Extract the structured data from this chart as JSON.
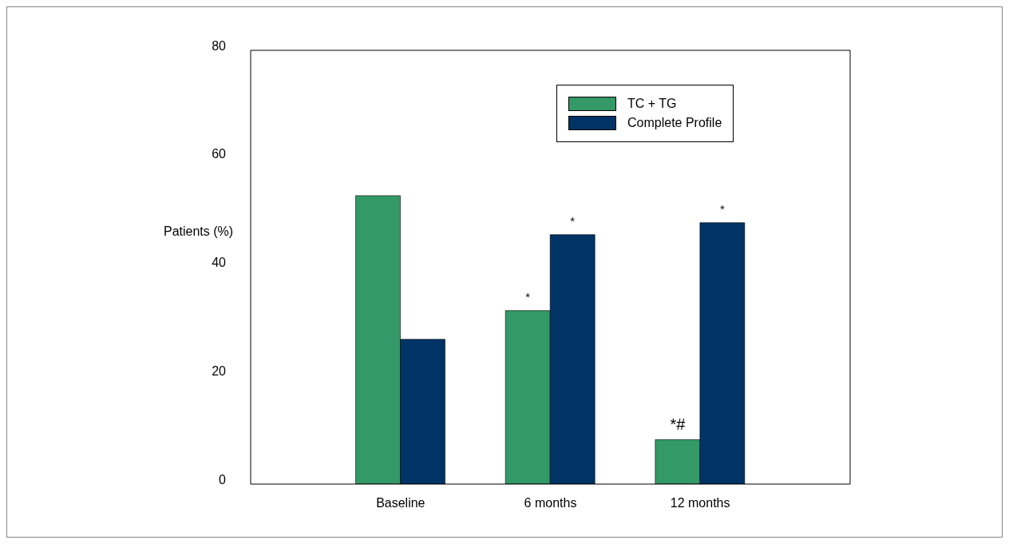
{
  "chart_data": {
    "type": "bar",
    "ylabel": "Patients (%)",
    "categories": [
      "Baseline",
      "6 months",
      "12 months"
    ],
    "series": [
      {
        "name": "TC + TG",
        "color": "#339966",
        "values": [
          53.2,
          32.0,
          8.2
        ]
      },
      {
        "name": "Complete Profile",
        "color": "#003366",
        "values": [
          26.7,
          46.0,
          48.2
        ]
      }
    ],
    "ylim": [
      0,
      80
    ],
    "yticks": [
      0,
      20,
      40,
      60,
      80
    ],
    "grid": false,
    "legend": "top right",
    "annotations": [
      {
        "text": "*",
        "x": "6 months",
        "y": 32.0
      },
      {
        "text": "*",
        "x": "6 months",
        "y": 46.0
      },
      {
        "text": "*#",
        "x": "12 months",
        "y": 8.2
      },
      {
        "text": "*",
        "x": "12 months",
        "y": 48.2
      }
    ]
  }
}
